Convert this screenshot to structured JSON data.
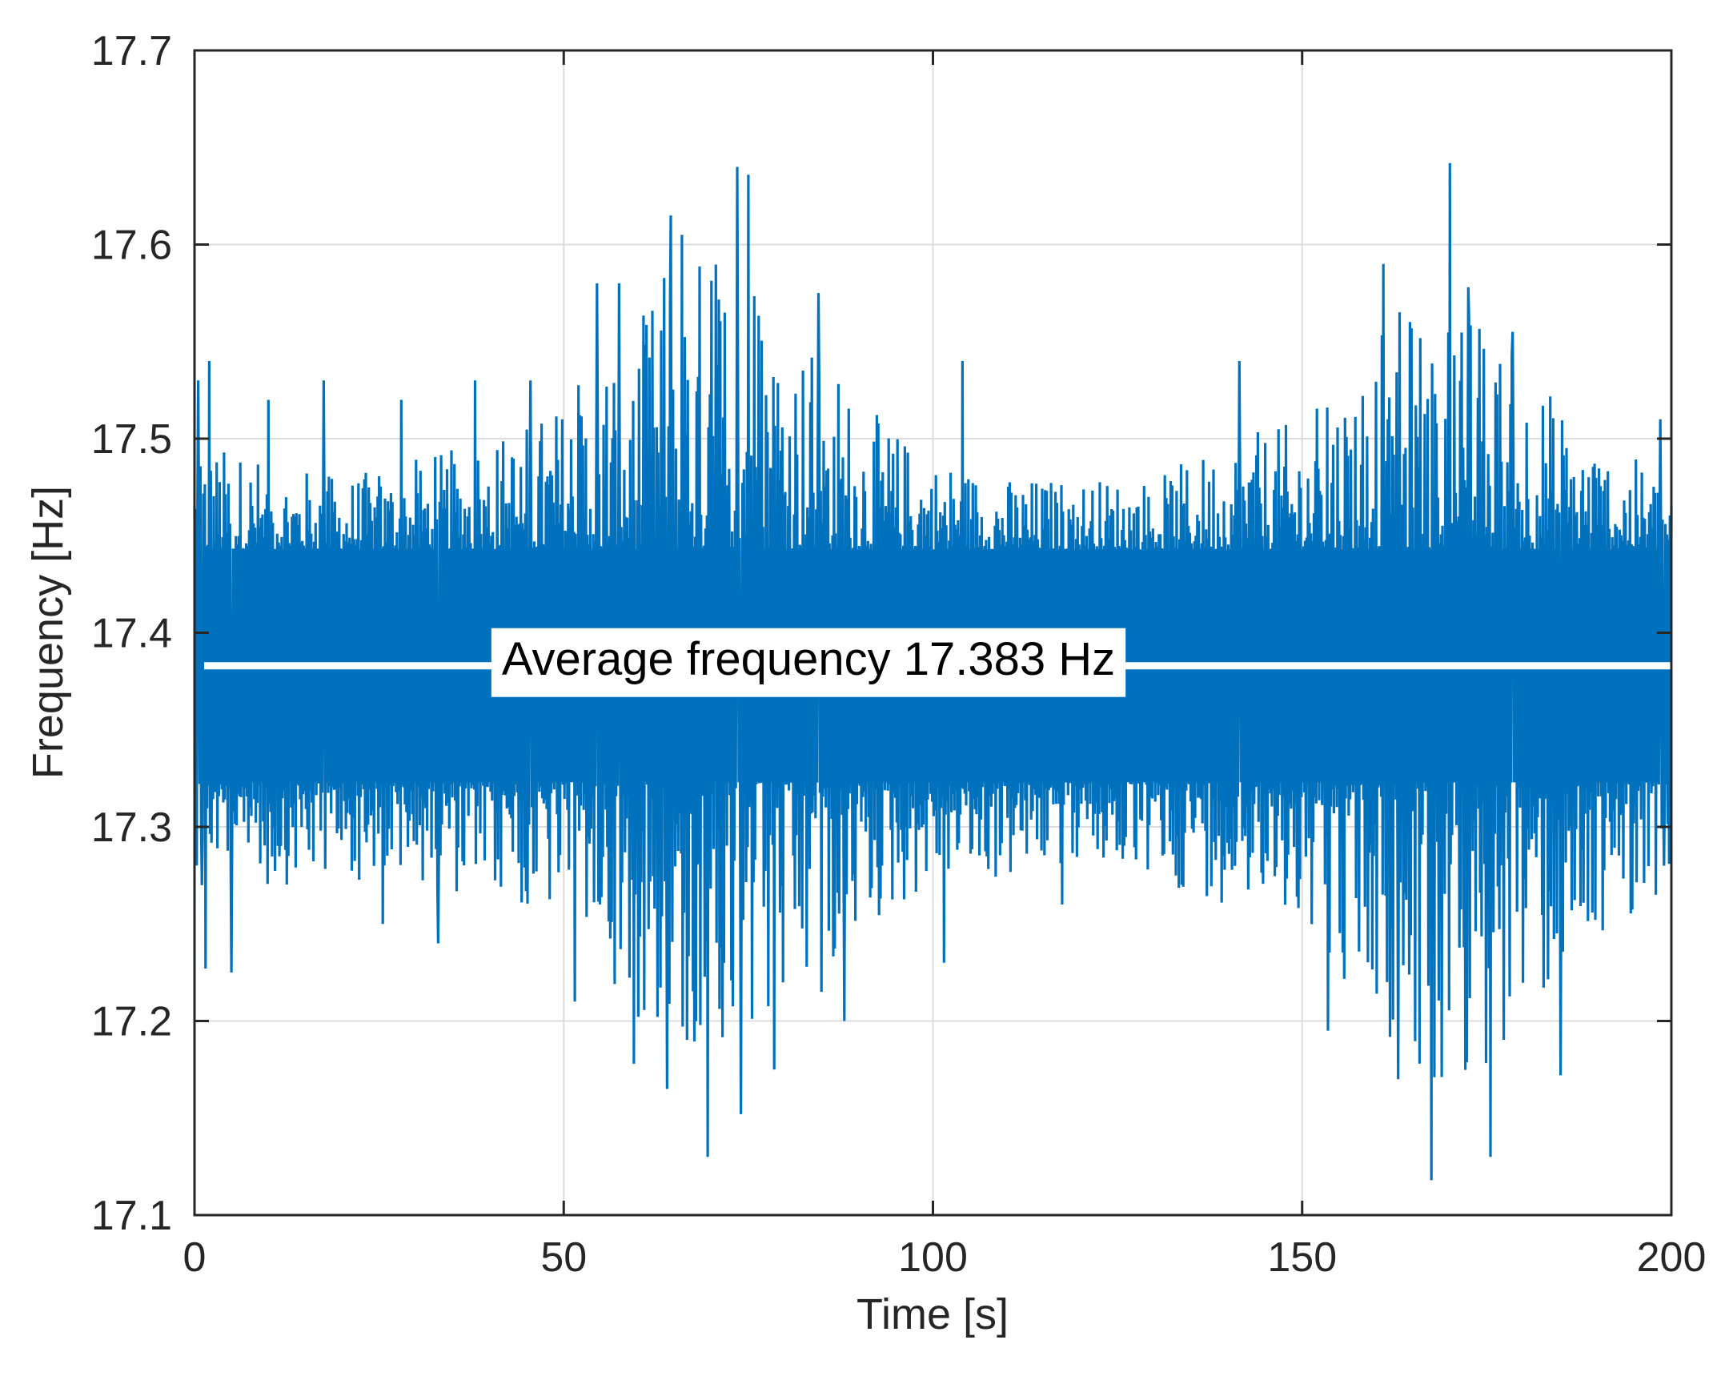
{
  "chart_data": {
    "type": "line",
    "title": "",
    "xlabel": "Time [s]",
    "ylabel": "Frequency [Hz]",
    "xlim": [
      0,
      200
    ],
    "ylim": [
      17.1,
      17.7
    ],
    "xticks": [
      0,
      50,
      100,
      150,
      200
    ],
    "xtick_labels": [
      "0",
      "50",
      "100",
      "150",
      "200"
    ],
    "yticks": [
      17.1,
      17.2,
      17.3,
      17.4,
      17.5,
      17.6,
      17.7
    ],
    "ytick_labels": [
      "17.1",
      "17.2",
      "17.3",
      "17.4",
      "17.5",
      "17.6",
      "17.7"
    ],
    "grid": true,
    "series": [
      {
        "name": "Frequency",
        "color": "#0072BD",
        "sample_step_s": 0.1,
        "mean": 17.383,
        "core_amplitude": 0.06,
        "envelope": {
          "x": [
            0,
            10,
            20,
            30,
            40,
            50,
            55,
            60,
            65,
            70,
            75,
            80,
            85,
            90,
            100,
            110,
            120,
            130,
            140,
            150,
            155,
            160,
            165,
            170,
            175,
            180,
            190,
            200
          ],
          "upper": [
            17.5,
            17.49,
            17.48,
            17.49,
            17.5,
            17.52,
            17.55,
            17.56,
            17.6,
            17.6,
            17.6,
            17.56,
            17.55,
            17.52,
            17.49,
            17.48,
            17.48,
            17.48,
            17.5,
            17.51,
            17.53,
            17.56,
            17.57,
            17.58,
            17.56,
            17.54,
            17.5,
            17.48
          ],
          "lower": [
            17.28,
            17.27,
            17.27,
            17.27,
            17.26,
            17.25,
            17.23,
            17.2,
            17.18,
            17.15,
            17.16,
            17.19,
            17.21,
            17.24,
            17.27,
            17.27,
            17.28,
            17.27,
            17.26,
            17.24,
            17.22,
            17.2,
            17.17,
            17.15,
            17.16,
            17.19,
            17.24,
            17.27
          ]
        },
        "spikes": [
          {
            "x": 0.5,
            "y": 17.53
          },
          {
            "x": 2.0,
            "y": 17.54
          },
          {
            "x": 10.0,
            "y": 17.52
          },
          {
            "x": 17.5,
            "y": 17.53
          },
          {
            "x": 28.0,
            "y": 17.52
          },
          {
            "x": 38.0,
            "y": 17.53
          },
          {
            "x": 45.5,
            "y": 17.53
          },
          {
            "x": 54.5,
            "y": 17.58
          },
          {
            "x": 57.5,
            "y": 17.58
          },
          {
            "x": 64.5,
            "y": 17.615
          },
          {
            "x": 66.0,
            "y": 17.605
          },
          {
            "x": 73.5,
            "y": 17.64
          },
          {
            "x": 75.0,
            "y": 17.636
          },
          {
            "x": 84.5,
            "y": 17.575
          },
          {
            "x": 104.0,
            "y": 17.54
          },
          {
            "x": 141.5,
            "y": 17.54
          },
          {
            "x": 161.0,
            "y": 17.59
          },
          {
            "x": 170.0,
            "y": 17.642
          },
          {
            "x": 172.5,
            "y": 17.578
          },
          {
            "x": 178.5,
            "y": 17.555
          },
          {
            "x": 198.5,
            "y": 17.51
          },
          {
            "x": 1.0,
            "y": 17.27
          },
          {
            "x": 1.5,
            "y": 17.227
          },
          {
            "x": 5.0,
            "y": 17.225
          },
          {
            "x": 25.5,
            "y": 17.25
          },
          {
            "x": 33.0,
            "y": 17.24
          },
          {
            "x": 51.5,
            "y": 17.21
          },
          {
            "x": 59.5,
            "y": 17.178
          },
          {
            "x": 64.0,
            "y": 17.165
          },
          {
            "x": 69.5,
            "y": 17.13
          },
          {
            "x": 74.0,
            "y": 17.152
          },
          {
            "x": 78.5,
            "y": 17.175
          },
          {
            "x": 88.0,
            "y": 17.2
          },
          {
            "x": 101.5,
            "y": 17.23
          },
          {
            "x": 117.5,
            "y": 17.26
          },
          {
            "x": 153.5,
            "y": 17.195
          },
          {
            "x": 163.0,
            "y": 17.17
          },
          {
            "x": 167.5,
            "y": 17.118
          },
          {
            "x": 175.5,
            "y": 17.13
          },
          {
            "x": 185.0,
            "y": 17.172
          },
          {
            "x": 199.0,
            "y": 17.28
          }
        ]
      }
    ],
    "average_line": {
      "value": 17.383,
      "color": "#ffffff",
      "label": "Average frequency 17.383 Hz"
    }
  }
}
